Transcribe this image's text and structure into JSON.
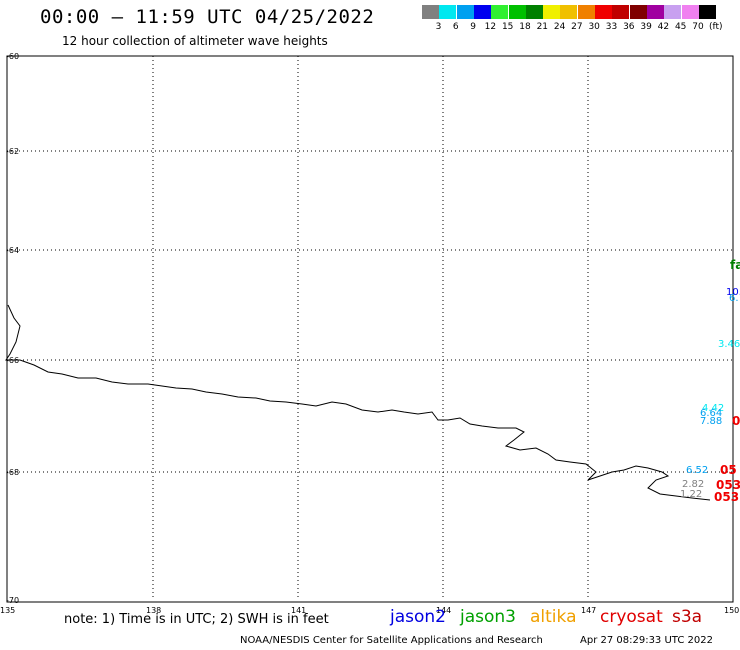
{
  "header": {
    "title": "00:00 – 11:59 UTC 04/25/2022",
    "subtitle": "12 hour collection of altimeter wave heights"
  },
  "legend": {
    "unit": "(ft)",
    "bins": [
      {
        "label": "3",
        "color": "#808080"
      },
      {
        "label": "6",
        "color": "#00e8f0"
      },
      {
        "label": "9",
        "color": "#00a0f0"
      },
      {
        "label": "12",
        "color": "#0000f0"
      },
      {
        "label": "15",
        "color": "#30f030"
      },
      {
        "label": "18",
        "color": "#00c000"
      },
      {
        "label": "21",
        "color": "#008000"
      },
      {
        "label": "24",
        "color": "#f0f000"
      },
      {
        "label": "27",
        "color": "#f0c000"
      },
      {
        "label": "30",
        "color": "#f08000"
      },
      {
        "label": "33",
        "color": "#f00000"
      },
      {
        "label": "36",
        "color": "#c00000"
      },
      {
        "label": "39",
        "color": "#800000"
      },
      {
        "label": "42",
        "color": "#a000a0"
      },
      {
        "label": "45",
        "color": "#c8a0f0"
      },
      {
        "label": "70",
        "color": "#f080f0"
      },
      {
        "label": "",
        "color": "#000000"
      }
    ]
  },
  "map": {
    "lon_ticks": [
      "135",
      "138",
      "141",
      "144",
      "147",
      "150"
    ],
    "lat_ticks": [
      "-60",
      "-62",
      "-64",
      "-66",
      "-68",
      "-70"
    ]
  },
  "observations": [
    {
      "text": "fa",
      "color": "#008000",
      "big": true
    },
    {
      "text": "10.",
      "color": "#0000f0",
      "big": false
    },
    {
      "text": "6.",
      "color": "#00a0f0",
      "big": false
    },
    {
      "text": "3.46",
      "color": "#00e8f0",
      "big": false
    },
    {
      "text": "4.42",
      "color": "#00e8f0",
      "big": false
    },
    {
      "text": "6.64",
      "color": "#00a0f0",
      "big": false
    },
    {
      "text": "7.88",
      "color": "#00a0f0",
      "big": false
    },
    {
      "text": "0",
      "color": "#f00000",
      "big": true
    },
    {
      "text": "6.52",
      "color": "#00a0f0",
      "big": false
    },
    {
      "text": "05",
      "color": "#f00000",
      "big": true
    },
    {
      "text": "2.82",
      "color": "#808080",
      "big": false
    },
    {
      "text": "053",
      "color": "#f00000",
      "big": true
    },
    {
      "text": "1.22",
      "color": "#808080",
      "big": false
    },
    {
      "text": "053",
      "color": "#f00000",
      "big": true
    }
  ],
  "footer": {
    "note": "note: 1) Time is in UTC; 2) SWH is in feet",
    "satellites": [
      {
        "name": "jason2",
        "color": "#0000e0"
      },
      {
        "name": "jason3",
        "color": "#00a000"
      },
      {
        "name": "altika",
        "color": "#f0a000"
      },
      {
        "name": "cryosat",
        "color": "#e00000"
      },
      {
        "name": "s3a",
        "color": "#c00000"
      }
    ],
    "credit": "NOAA/NESDIS Center for Satellite Applications and Research",
    "timestamp": "Apr 27 08:29:33 UTC 2022"
  }
}
